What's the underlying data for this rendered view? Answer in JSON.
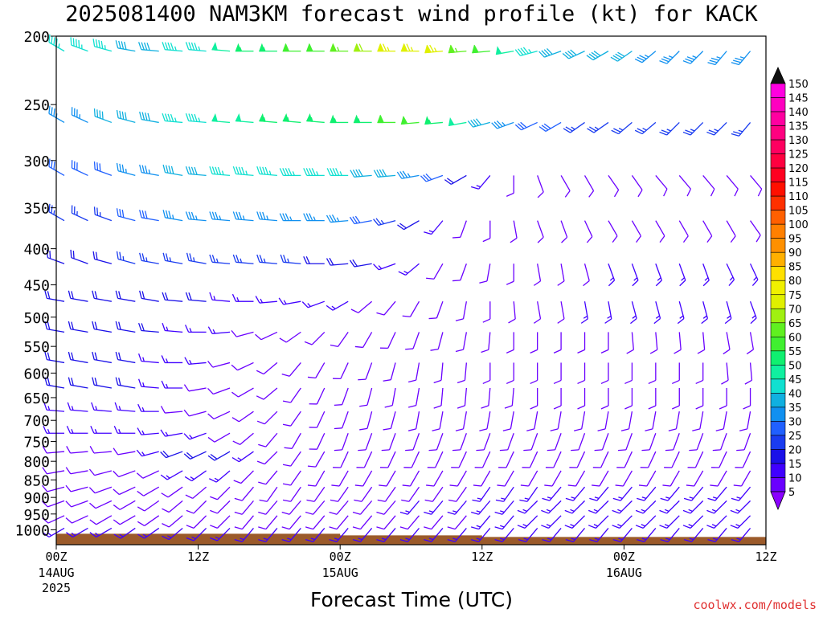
{
  "title": "2025081400 NAM3KM forecast wind profile (kt) for KACK",
  "credit": "coolwx.com/models",
  "colors": {
    "ground": "#9b5a2a",
    "frame": "#000000",
    "credit": "#e03030"
  },
  "chart_data": {
    "type": "wind-barb time-height profile",
    "title": "2025081400 NAM3KM forecast wind profile (kt) for KACK",
    "xlabel": "Forecast Time (UTC)",
    "ylabel": "",
    "x_range_hours": [
      0,
      60
    ],
    "x_ticks": [
      {
        "hour": 0,
        "label": "00Z",
        "sub": [
          "14AUG",
          "2025"
        ]
      },
      {
        "hour": 12,
        "label": "12Z",
        "sub": []
      },
      {
        "hour": 24,
        "label": "00Z",
        "sub": [
          "15AUG"
        ]
      },
      {
        "hour": 36,
        "label": "12Z",
        "sub": []
      },
      {
        "hour": 48,
        "label": "00Z",
        "sub": [
          "16AUG"
        ]
      },
      {
        "hour": 60,
        "label": "12Z",
        "sub": []
      }
    ],
    "y_axis": "pressure (hPa), log scale, inverted",
    "y_ticks": [
      200,
      250,
      300,
      350,
      400,
      450,
      500,
      550,
      600,
      650,
      700,
      750,
      800,
      850,
      900,
      950,
      1000
    ],
    "colorbar_units": "kt",
    "colorbar_levels": [
      5,
      10,
      15,
      20,
      25,
      30,
      35,
      40,
      45,
      50,
      55,
      60,
      65,
      70,
      75,
      80,
      85,
      90,
      95,
      100,
      105,
      110,
      115,
      120,
      125,
      130,
      135,
      140,
      145,
      150
    ],
    "colorbar_colors": [
      "#8a00ff",
      "#6a00ff",
      "#4000ff",
      "#1a10e8",
      "#1a3cf0",
      "#2060ff",
      "#1090f0",
      "#10b0e0",
      "#10e0d0",
      "#10f0a0",
      "#10f070",
      "#40f030",
      "#60f020",
      "#a0f010",
      "#e0f000",
      "#f0f000",
      "#ffe000",
      "#ffb000",
      "#ff9000",
      "#ff8000",
      "#ff6000",
      "#ff3000",
      "#ff1000",
      "#ff0020",
      "#ff0040",
      "#ff0060",
      "#ff0080",
      "#ff00a0",
      "#ff00c0",
      "#ff00e0"
    ],
    "levels_hPa": [
      210,
      265,
      315,
      365,
      420,
      475,
      525,
      580,
      630,
      680,
      730,
      775,
      825,
      870,
      910,
      955,
      995
    ],
    "wind_rows": [
      {
        "p": 210,
        "dirs": [
          300,
          290,
          285,
          280,
          275,
          275,
          275,
          275,
          270,
          270,
          270,
          270,
          270,
          270,
          270,
          270,
          265,
          265,
          265,
          260,
          255,
          250,
          245,
          240,
          235,
          230,
          225,
          225,
          220,
          220,
          215
        ],
        "spds": [
          45,
          45,
          45,
          40,
          40,
          45,
          45,
          50,
          55,
          55,
          60,
          60,
          65,
          70,
          75,
          75,
          75,
          65,
          60,
          50,
          45,
          40,
          40,
          40,
          40,
          35,
          35,
          35,
          35,
          35,
          35
        ]
      },
      {
        "p": 265,
        "dirs": [
          300,
          295,
          290,
          285,
          280,
          275,
          275,
          275,
          275,
          275,
          275,
          275,
          270,
          270,
          270,
          265,
          265,
          260,
          255,
          250,
          245,
          240,
          235,
          235,
          230,
          230,
          225,
          225,
          225,
          220,
          220
        ],
        "spds": [
          35,
          35,
          40,
          40,
          40,
          45,
          45,
          50,
          50,
          55,
          55,
          55,
          55,
          55,
          60,
          60,
          55,
          50,
          40,
          35,
          30,
          30,
          25,
          25,
          25,
          25,
          25,
          25,
          25,
          25,
          25
        ]
      },
      {
        "p": 315,
        "dirs": [
          300,
          295,
          290,
          285,
          280,
          280,
          275,
          275,
          275,
          275,
          270,
          270,
          270,
          265,
          265,
          260,
          250,
          240,
          220,
          180,
          160,
          150,
          150,
          145,
          145,
          140,
          140,
          140,
          140,
          140,
          140
        ],
        "spds": [
          30,
          30,
          30,
          35,
          35,
          40,
          40,
          45,
          45,
          45,
          45,
          45,
          45,
          40,
          40,
          35,
          30,
          20,
          15,
          10,
          10,
          10,
          10,
          10,
          10,
          10,
          10,
          10,
          10,
          10,
          10
        ]
      },
      {
        "p": 365,
        "dirs": [
          300,
          295,
          290,
          285,
          280,
          280,
          275,
          275,
          275,
          275,
          270,
          270,
          265,
          260,
          255,
          240,
          220,
          200,
          180,
          170,
          160,
          160,
          155,
          150,
          150,
          150,
          150,
          150,
          150,
          145,
          145
        ],
        "spds": [
          25,
          25,
          25,
          30,
          30,
          35,
          35,
          35,
          35,
          35,
          35,
          35,
          35,
          30,
          25,
          20,
          15,
          10,
          10,
          10,
          10,
          10,
          10,
          10,
          10,
          10,
          10,
          10,
          10,
          10,
          10
        ]
      },
      {
        "p": 420,
        "dirs": [
          290,
          290,
          285,
          285,
          280,
          280,
          280,
          275,
          275,
          275,
          275,
          270,
          265,
          260,
          250,
          230,
          210,
          200,
          190,
          180,
          170,
          170,
          165,
          160,
          160,
          160,
          160,
          160,
          155,
          155,
          150
        ],
        "spds": [
          20,
          20,
          20,
          25,
          25,
          25,
          25,
          25,
          25,
          25,
          25,
          20,
          20,
          20,
          15,
          15,
          10,
          10,
          10,
          10,
          10,
          10,
          10,
          15,
          15,
          15,
          15,
          15,
          15,
          15,
          15
        ]
      },
      {
        "p": 475,
        "dirs": [
          280,
          280,
          280,
          280,
          280,
          275,
          275,
          275,
          270,
          265,
          260,
          250,
          240,
          230,
          220,
          210,
          200,
          190,
          180,
          175,
          170,
          170,
          170,
          170,
          165,
          165,
          165,
          165,
          165,
          160,
          160
        ],
        "spds": [
          20,
          20,
          20,
          20,
          20,
          20,
          20,
          15,
          15,
          15,
          15,
          15,
          15,
          10,
          10,
          10,
          10,
          10,
          10,
          10,
          10,
          10,
          15,
          15,
          15,
          15,
          15,
          15,
          15,
          15,
          15
        ]
      },
      {
        "p": 525,
        "dirs": [
          280,
          280,
          280,
          280,
          275,
          275,
          270,
          265,
          255,
          245,
          235,
          225,
          215,
          210,
          205,
          200,
          195,
          190,
          185,
          180,
          180,
          180,
          180,
          180,
          175,
          175,
          175,
          175,
          170,
          170,
          170
        ],
        "spds": [
          20,
          20,
          20,
          20,
          20,
          15,
          15,
          15,
          10,
          10,
          10,
          10,
          10,
          10,
          10,
          10,
          10,
          10,
          10,
          10,
          10,
          10,
          10,
          10,
          10,
          10,
          10,
          10,
          10,
          10,
          10
        ]
      },
      {
        "p": 580,
        "dirs": [
          280,
          280,
          280,
          280,
          275,
          270,
          265,
          255,
          245,
          230,
          220,
          210,
          205,
          200,
          195,
          190,
          185,
          185,
          180,
          180,
          180,
          180,
          180,
          180,
          180,
          180,
          180,
          180,
          175,
          175,
          175
        ],
        "spds": [
          20,
          20,
          20,
          20,
          15,
          15,
          15,
          10,
          10,
          10,
          10,
          10,
          10,
          10,
          10,
          10,
          10,
          10,
          10,
          10,
          10,
          10,
          10,
          10,
          10,
          10,
          10,
          10,
          10,
          10,
          10
        ]
      },
      {
        "p": 630,
        "dirs": [
          280,
          280,
          280,
          280,
          275,
          270,
          260,
          250,
          240,
          230,
          215,
          205,
          200,
          195,
          190,
          190,
          185,
          185,
          185,
          185,
          180,
          180,
          180,
          180,
          180,
          180,
          180,
          180,
          180,
          180,
          180
        ],
        "spds": [
          20,
          20,
          20,
          20,
          15,
          15,
          10,
          10,
          10,
          10,
          10,
          10,
          10,
          10,
          10,
          10,
          10,
          10,
          10,
          10,
          10,
          10,
          10,
          10,
          10,
          10,
          10,
          10,
          10,
          10,
          10
        ]
      },
      {
        "p": 680,
        "dirs": [
          275,
          275,
          275,
          275,
          270,
          265,
          255,
          245,
          235,
          225,
          215,
          205,
          200,
          195,
          195,
          190,
          190,
          190,
          190,
          190,
          190,
          190,
          190,
          190,
          190,
          190,
          190,
          190,
          190,
          190,
          190
        ],
        "spds": [
          15,
          15,
          15,
          15,
          15,
          10,
          10,
          10,
          10,
          10,
          10,
          10,
          10,
          10,
          10,
          10,
          10,
          10,
          10,
          10,
          10,
          10,
          10,
          10,
          10,
          10,
          10,
          10,
          10,
          10,
          10
        ]
      },
      {
        "p": 730,
        "dirs": [
          270,
          270,
          270,
          270,
          265,
          260,
          250,
          240,
          230,
          220,
          210,
          205,
          200,
          200,
          200,
          200,
          200,
          200,
          200,
          200,
          200,
          200,
          200,
          200,
          200,
          200,
          200,
          200,
          200,
          200,
          200
        ],
        "spds": [
          15,
          15,
          15,
          15,
          15,
          15,
          15,
          10,
          10,
          10,
          10,
          10,
          10,
          10,
          10,
          10,
          10,
          10,
          10,
          10,
          10,
          10,
          10,
          10,
          10,
          10,
          10,
          10,
          10,
          10,
          10
        ]
      },
      {
        "p": 775,
        "dirs": [
          265,
          265,
          265,
          260,
          255,
          250,
          245,
          240,
          235,
          225,
          215,
          210,
          205,
          205,
          205,
          205,
          205,
          205,
          205,
          205,
          205,
          205,
          205,
          205,
          205,
          205,
          205,
          205,
          205,
          205,
          205
        ],
        "spds": [
          10,
          10,
          10,
          10,
          15,
          20,
          20,
          20,
          15,
          10,
          10,
          10,
          10,
          10,
          10,
          10,
          10,
          10,
          10,
          10,
          10,
          10,
          10,
          10,
          10,
          10,
          10,
          10,
          10,
          10,
          10
        ]
      },
      {
        "p": 825,
        "dirs": [
          260,
          260,
          255,
          250,
          245,
          240,
          235,
          230,
          225,
          220,
          215,
          210,
          210,
          210,
          210,
          210,
          210,
          210,
          210,
          210,
          210,
          210,
          210,
          210,
          210,
          210,
          210,
          210,
          210,
          210,
          210
        ],
        "spds": [
          10,
          10,
          10,
          10,
          10,
          15,
          15,
          15,
          10,
          10,
          10,
          10,
          10,
          10,
          10,
          10,
          10,
          10,
          10,
          10,
          10,
          10,
          10,
          10,
          10,
          10,
          10,
          10,
          10,
          10,
          10
        ]
      },
      {
        "p": 870,
        "dirs": [
          255,
          255,
          250,
          245,
          240,
          235,
          230,
          225,
          220,
          215,
          215,
          215,
          215,
          215,
          215,
          215,
          215,
          215,
          215,
          215,
          215,
          220,
          220,
          220,
          220,
          220,
          220,
          220,
          220,
          220,
          220
        ],
        "spds": [
          10,
          10,
          10,
          10,
          10,
          10,
          10,
          10,
          10,
          10,
          10,
          10,
          10,
          10,
          10,
          10,
          10,
          10,
          15,
          15,
          15,
          15,
          15,
          15,
          15,
          15,
          15,
          15,
          15,
          15,
          15
        ]
      },
      {
        "p": 910,
        "dirs": [
          250,
          250,
          245,
          240,
          235,
          230,
          225,
          225,
          220,
          220,
          220,
          220,
          220,
          220,
          220,
          220,
          220,
          220,
          220,
          220,
          225,
          225,
          225,
          225,
          225,
          225,
          225,
          225,
          225,
          225,
          225
        ],
        "spds": [
          10,
          10,
          10,
          10,
          10,
          10,
          10,
          10,
          10,
          10,
          10,
          10,
          10,
          10,
          10,
          15,
          15,
          15,
          15,
          15,
          15,
          15,
          15,
          15,
          15,
          15,
          15,
          15,
          15,
          15,
          15
        ]
      },
      {
        "p": 955,
        "dirs": [
          245,
          245,
          240,
          240,
          235,
          230,
          225,
          225,
          220,
          220,
          220,
          220,
          220,
          220,
          220,
          220,
          220,
          220,
          220,
          220,
          225,
          225,
          225,
          225,
          225,
          225,
          225,
          225,
          225,
          225,
          225
        ],
        "spds": [
          10,
          10,
          10,
          10,
          10,
          10,
          10,
          10,
          10,
          10,
          10,
          10,
          10,
          10,
          10,
          10,
          10,
          10,
          15,
          15,
          15,
          15,
          15,
          15,
          15,
          15,
          15,
          15,
          15,
          15,
          15
        ]
      },
      {
        "p": 995,
        "dirs": [
          240,
          240,
          240,
          235,
          235,
          230,
          225,
          225,
          220,
          220,
          220,
          220,
          220,
          220,
          220,
          220,
          220,
          220,
          220,
          220,
          220,
          220,
          220,
          220,
          220,
          220,
          220,
          220,
          220,
          220,
          220
        ],
        "spds": [
          15,
          15,
          15,
          15,
          15,
          15,
          15,
          15,
          15,
          15,
          15,
          15,
          15,
          15,
          15,
          15,
          15,
          15,
          15,
          15,
          15,
          15,
          15,
          15,
          15,
          15,
          15,
          15,
          15,
          15,
          15
        ]
      }
    ]
  }
}
